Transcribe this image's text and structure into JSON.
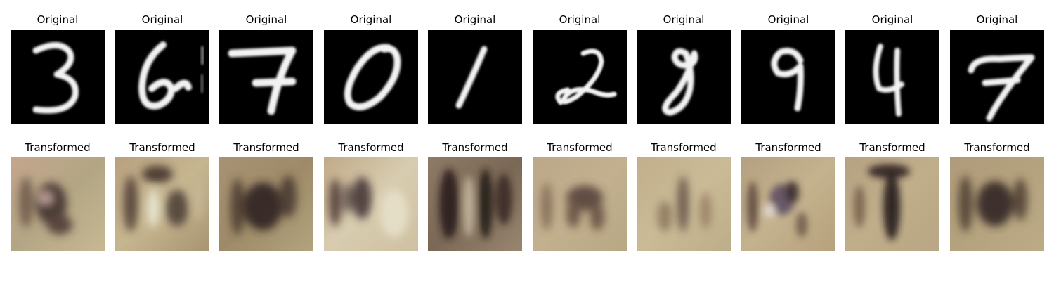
{
  "figure": {
    "panels": [
      {
        "digit": "3",
        "original_title": "Original",
        "transformed_title": "Transformed"
      },
      {
        "digit": "6",
        "original_title": "Original",
        "transformed_title": "Transformed"
      },
      {
        "digit": "7",
        "original_title": "Original",
        "transformed_title": "Transformed"
      },
      {
        "digit": "0",
        "original_title": "Original",
        "transformed_title": "Transformed"
      },
      {
        "digit": "1",
        "original_title": "Original",
        "transformed_title": "Transformed"
      },
      {
        "digit": "2",
        "original_title": "Original",
        "transformed_title": "Transformed"
      },
      {
        "digit": "8",
        "original_title": "Original",
        "transformed_title": "Transformed"
      },
      {
        "digit": "9",
        "original_title": "Original",
        "transformed_title": "Transformed"
      },
      {
        "digit": "4",
        "original_title": "Original",
        "transformed_title": "Transformed"
      },
      {
        "digit": "7",
        "original_title": "Original",
        "transformed_title": "Transformed"
      }
    ],
    "colors": {
      "original_background": "#000000",
      "original_stroke": "#f2f2f2",
      "transformed_background": "#b8a884",
      "transformed_dark": "#2b1f1c"
    }
  }
}
